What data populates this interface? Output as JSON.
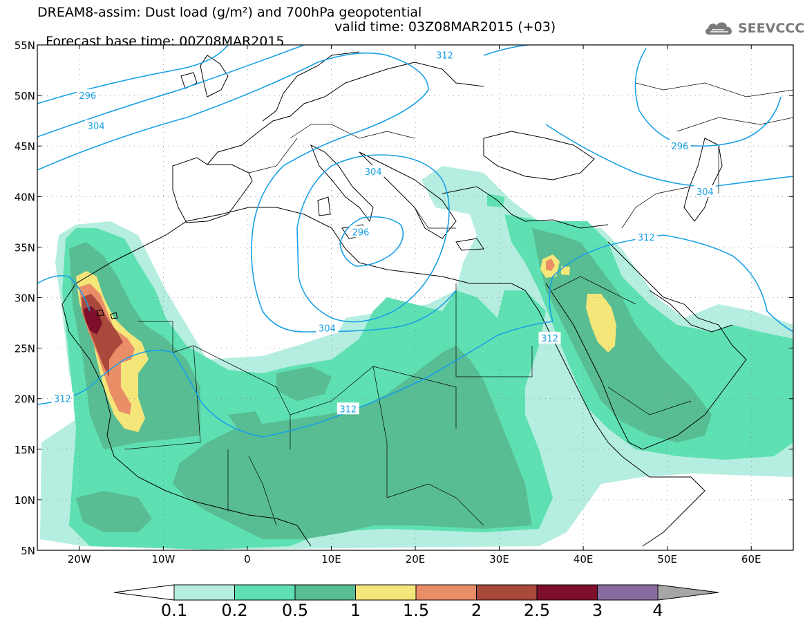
{
  "header": {
    "line1": "DREAM8-assim: Dust load (g/m²) and 700hPa geopotential",
    "line2_base": "Forecast base time: 00Z08MAR2015",
    "line2_valid": "valid time: 03Z08MAR2015 (+03)"
  },
  "logo": {
    "icon": "cloud-icon",
    "text": "SEEVCCC"
  },
  "axes": {
    "lat_labels": [
      "55N",
      "50N",
      "45N",
      "40N",
      "35N",
      "30N",
      "25N",
      "20N",
      "15N",
      "10N",
      "5N"
    ],
    "lon_labels": [
      "20W",
      "10W",
      "0",
      "10E",
      "20E",
      "30E",
      "40E",
      "50E",
      "60E"
    ],
    "lat_range": [
      5,
      55
    ],
    "lon_range": [
      -25,
      65
    ]
  },
  "contours": {
    "color": "#19a0e6",
    "labels": [
      {
        "text": "296",
        "lon": -19.0,
        "lat": 50.0
      },
      {
        "text": "304",
        "lon": -18.0,
        "lat": 47.0
      },
      {
        "text": "312",
        "lon": 23.5,
        "lat": 54.0
      },
      {
        "text": "304",
        "lon": 15.0,
        "lat": 42.5
      },
      {
        "text": "296",
        "lon": 13.5,
        "lat": 36.5
      },
      {
        "text": "304",
        "lon": 9.5,
        "lat": 27.0
      },
      {
        "text": "312",
        "lon": 36.0,
        "lat": 26.0
      },
      {
        "text": "312",
        "lon": 47.5,
        "lat": 36.0
      },
      {
        "text": "296",
        "lon": 51.5,
        "lat": 45.0
      },
      {
        "text": "304",
        "lon": 54.5,
        "lat": 40.5
      },
      {
        "text": "312",
        "lon": -22.0,
        "lat": 20.0
      },
      {
        "text": "312",
        "lon": 12.0,
        "lat": 19.0
      }
    ]
  },
  "colorbar": {
    "labels": [
      "0.1",
      "0.2",
      "0.5",
      "1",
      "1.5",
      "2",
      "2.5",
      "3",
      "4"
    ],
    "colors": [
      "#b5eee0",
      "#5ee0b2",
      "#58bd93",
      "#f5e67a",
      "#ea8e67",
      "#a9493c",
      "#7d0f2a",
      "#886b9e",
      "#a6a6a6"
    ]
  }
}
